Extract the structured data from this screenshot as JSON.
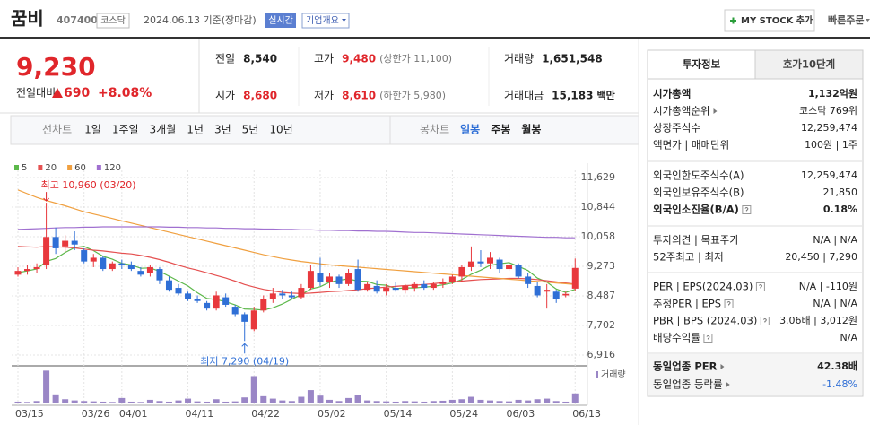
{
  "header": {
    "name": "꿈비",
    "code": "407400",
    "market": "코스닥",
    "date": "2024.06.13 기준(장마감)",
    "realtime": "실시간",
    "company_info": "기업개요",
    "my_stock": "MY STOCK 추가",
    "quick_order": "빠른주문"
  },
  "price": {
    "current": "9,230",
    "change_label": "전일대비",
    "change": "690",
    "change_pct": "+8.08%",
    "color": "#e0262b"
  },
  "quotes": [
    {
      "label": "전일",
      "value": "8,540"
    },
    {
      "label": "고가",
      "value": "9,480",
      "note": "(상한가 11,100)",
      "color": "#e0262b"
    },
    {
      "label": "거래량",
      "value": "1,651,548"
    },
    {
      "label": "시가",
      "value": "8,680",
      "color": "#e0262b"
    },
    {
      "label": "저가",
      "value": "8,610",
      "note": "(하한가 5,980)",
      "color": "#e0262b"
    },
    {
      "label": "거래대금",
      "value": "15,183",
      "note": "백만"
    }
  ],
  "period_tabs": {
    "line_label": "선차트",
    "line_items": [
      "1일",
      "1주일",
      "3개월",
      "1년",
      "3년",
      "5년",
      "10년"
    ],
    "candle_label": "봉차트",
    "candle_items": [
      "일봉",
      "주봉",
      "월봉"
    ],
    "active_candle": 0
  },
  "info": {
    "tabs": [
      "투자정보",
      "호가10단계"
    ],
    "groups": [
      [
        {
          "label": "시가총액",
          "value": "1,132억원",
          "bold": true
        },
        {
          "label": "시가총액순위",
          "value": "코스닥 769위",
          "link": true
        },
        {
          "label": "상장주식수",
          "value": "12,259,474"
        },
        {
          "label": "액면가 | 매매단위",
          "value": "100원 | 1주"
        }
      ],
      [
        {
          "label": "외국인한도주식수(A)",
          "value": "12,259,474"
        },
        {
          "label": "외국인보유주식수(B)",
          "value": "21,850"
        },
        {
          "label": "외국인소진율(B/A)",
          "value": "0.18%",
          "bold": true,
          "help": true
        }
      ],
      [
        {
          "label": "투자의견 | 목표주가",
          "value": "N/A | N/A"
        },
        {
          "label": "52주최고 | 최저",
          "value": "20,450 | 7,290"
        }
      ],
      [
        {
          "label": "PER | EPS(2024.03)",
          "value": "N/A | -110원",
          "help": true
        },
        {
          "label": "추정PER | EPS",
          "value": "N/A | N/A",
          "help": true
        },
        {
          "label": "PBR | BPS (2024.03)",
          "value": "3.06배 | 3,012원",
          "help": true
        },
        {
          "label": "배당수익률",
          "value": "N/A",
          "help": true
        }
      ]
    ],
    "industry": [
      {
        "label": "동일업종 PER",
        "value": "42.38배",
        "bold": true,
        "link": true
      },
      {
        "label": "동일업종 등락률",
        "value": "-1.48%",
        "link": true,
        "color": "#2f6fd6"
      }
    ]
  },
  "chart_data": {
    "type": "candlestick",
    "categories": [
      "03/15",
      null,
      null,
      null,
      null,
      null,
      null,
      "03/26",
      null,
      null,
      null,
      "04/01",
      null,
      null,
      null,
      null,
      null,
      null,
      "04/11",
      null,
      null,
      null,
      null,
      null,
      null,
      "04/22",
      null,
      null,
      null,
      null,
      null,
      null,
      "05/02",
      null,
      null,
      null,
      null,
      null,
      null,
      "05/14",
      null,
      null,
      null,
      null,
      null,
      null,
      "05/24",
      null,
      null,
      null,
      null,
      null,
      "06/03",
      null,
      null,
      null,
      null,
      null,
      null,
      "06/13"
    ],
    "open": [
      9050,
      9150,
      9200,
      9300,
      10050,
      9800,
      9950,
      9700,
      9400,
      9500,
      9200,
      9350,
      9300,
      9150,
      9100,
      9200,
      8900,
      8700,
      8550,
      8400,
      8300,
      8150,
      8450,
      8200,
      8000,
      7600,
      8100,
      8400,
      8550,
      8500,
      8450,
      8700,
      9100,
      8850,
      9000,
      8800,
      9200,
      8650,
      8750,
      8600,
      8700,
      8650,
      8700,
      8800,
      8700,
      8800,
      8850,
      9000,
      9250,
      9400,
      9350,
      9450,
      9200,
      9300,
      9000,
      8750,
      8600,
      8600,
      8500,
      8680
    ],
    "high": [
      9250,
      9300,
      9350,
      10960,
      10300,
      10100,
      10200,
      9750,
      9600,
      9550,
      9400,
      9450,
      9400,
      9250,
      9300,
      9250,
      9000,
      8800,
      8600,
      8500,
      8350,
      8600,
      8550,
      8250,
      8050,
      8200,
      8500,
      8700,
      8650,
      8600,
      8800,
      9300,
      9500,
      9100,
      9050,
      9200,
      9450,
      8850,
      8900,
      8800,
      8850,
      8800,
      8850,
      8900,
      8850,
      8950,
      9050,
      9300,
      9800,
      9700,
      9650,
      9500,
      9350,
      9350,
      9100,
      8850,
      8800,
      8650,
      8600,
      9480
    ],
    "low": [
      9000,
      9050,
      9100,
      9200,
      9600,
      9650,
      9700,
      9350,
      9250,
      9150,
      9150,
      9200,
      9150,
      9000,
      9000,
      8800,
      8600,
      8500,
      8350,
      8300,
      8100,
      8100,
      8200,
      7950,
      7290,
      7550,
      8050,
      8300,
      8400,
      8400,
      8400,
      8650,
      8750,
      8700,
      8700,
      8750,
      8600,
      8600,
      8550,
      8500,
      8600,
      8550,
      8600,
      8650,
      8650,
      8700,
      8800,
      8850,
      9150,
      9250,
      9200,
      9100,
      9150,
      8950,
      8700,
      8450,
      8150,
      8300,
      8450,
      8610
    ],
    "close": [
      9150,
      9200,
      9250,
      10050,
      9750,
      9950,
      9850,
      9400,
      9500,
      9200,
      9350,
      9300,
      9200,
      9050,
      9250,
      8900,
      8650,
      8550,
      8400,
      8350,
      8150,
      8500,
      8250,
      8000,
      7800,
      8100,
      8400,
      8550,
      8500,
      8450,
      8700,
      9150,
      8850,
      9000,
      8800,
      9100,
      8650,
      8800,
      8600,
      8700,
      8650,
      8750,
      8800,
      8700,
      8800,
      8850,
      9000,
      9250,
      9400,
      9350,
      9500,
      9200,
      9300,
      9000,
      8800,
      8500,
      8650,
      8400,
      8540,
      9230
    ],
    "up_color": "#e8383d",
    "down_color": "#2f6fd6",
    "moving_averages": [
      {
        "name": "5",
        "color": "#5cb84a",
        "values": [
          9100,
          9150,
          9200,
          9400,
          9480,
          9640,
          9770,
          9800,
          9690,
          9540,
          9460,
          9350,
          9310,
          9220,
          9230,
          9140,
          9010,
          8880,
          8750,
          8570,
          8420,
          8390,
          8330,
          8250,
          8140,
          8130,
          8110,
          8170,
          8270,
          8400,
          8520,
          8670,
          8730,
          8850,
          8900,
          8940,
          8880,
          8870,
          8790,
          8770,
          8680,
          8700,
          8700,
          8720,
          8740,
          8780,
          8830,
          8920,
          9060,
          9170,
          9300,
          9340,
          9370,
          9270,
          9160,
          8960,
          8850,
          8670,
          8580,
          8660
        ]
      },
      {
        "name": "20",
        "color": "#e55050",
        "values": [
          9800,
          9790,
          9780,
          9800,
          9790,
          9780,
          9760,
          9730,
          9700,
          9680,
          9650,
          9620,
          9600,
          9560,
          9510,
          9450,
          9380,
          9300,
          9230,
          9170,
          9100,
          9030,
          8960,
          8880,
          8790,
          8720,
          8660,
          8620,
          8580,
          8560,
          8550,
          8560,
          8580,
          8600,
          8610,
          8630,
          8650,
          8680,
          8700,
          8720,
          8740,
          8760,
          8770,
          8790,
          8810,
          8840,
          8860,
          8880,
          8900,
          8920,
          8930,
          8940,
          8950,
          8950,
          8940,
          8920,
          8890,
          8860,
          8830,
          8800
        ]
      },
      {
        "name": "60",
        "color": "#f0a040",
        "values": [
          11300,
          11200,
          11100,
          11020,
          10950,
          10880,
          10800,
          10720,
          10660,
          10600,
          10540,
          10480,
          10420,
          10360,
          10300,
          10240,
          10180,
          10120,
          10060,
          10000,
          9940,
          9880,
          9820,
          9760,
          9700,
          9640,
          9580,
          9530,
          9480,
          9440,
          9400,
          9370,
          9340,
          9310,
          9290,
          9270,
          9250,
          9230,
          9210,
          9190,
          9170,
          9150,
          9130,
          9110,
          9090,
          9070,
          9050,
          9030,
          9010,
          8990,
          8970,
          8950,
          8930,
          8910,
          8890,
          8870,
          8850,
          8830,
          8810,
          8790
        ]
      },
      {
        "name": "120",
        "color": "#a070d0",
        "values": [
          10250,
          10260,
          10270,
          10280,
          10290,
          10300,
          10300,
          10310,
          10310,
          10320,
          10320,
          10320,
          10320,
          10320,
          10320,
          10320,
          10310,
          10310,
          10300,
          10300,
          10290,
          10290,
          10280,
          10280,
          10270,
          10270,
          10260,
          10260,
          10250,
          10250,
          10240,
          10240,
          10230,
          10230,
          10220,
          10220,
          10210,
          10210,
          10200,
          10200,
          10190,
          10180,
          10170,
          10170,
          10160,
          10150,
          10140,
          10130,
          10120,
          10110,
          10100,
          10090,
          10080,
          10070,
          10060,
          10050,
          10040,
          10040,
          10030,
          10030
        ]
      }
    ],
    "volume": {
      "name": "거래량",
      "color": "#9a86c6",
      "ylim": [
        0,
        5600000
      ],
      "values": [
        300000,
        250000,
        400000,
        5400000,
        1500000,
        700000,
        500000,
        400000,
        350000,
        300000,
        250000,
        900000,
        300000,
        250000,
        600000,
        400000,
        300000,
        500000,
        800000,
        350000,
        300000,
        700000,
        300000,
        350000,
        1000000,
        4500000,
        1200000,
        800000,
        500000,
        400000,
        1100000,
        2200000,
        1300000,
        600000,
        400000,
        900000,
        1400000,
        500000,
        400000,
        350000,
        300000,
        400000,
        350000,
        300000,
        400000,
        450000,
        600000,
        700000,
        1100000,
        600000,
        500000,
        400000,
        350000,
        600000,
        500000,
        700000,
        800000,
        400000,
        300000,
        1651548
      ]
    },
    "ylim": [
      6702,
      11819
    ],
    "yticks": [
      {
        "value": 11629,
        "label": "11,629"
      },
      {
        "value": 10844,
        "label": "10,844"
      },
      {
        "value": 10058,
        "label": "10,058"
      },
      {
        "value": 9273,
        "label": "9,273"
      },
      {
        "value": 8487,
        "label": "8,487"
      },
      {
        "value": 7702,
        "label": "7,702"
      },
      {
        "value": 6916,
        "label": "6,916"
      }
    ],
    "grid": true,
    "annotations": [
      {
        "text": "최고 10,960 (03/20)",
        "value": 10960,
        "position": "above",
        "color": "#e0262b"
      },
      {
        "text": "최저 7,290 (04/19)",
        "value": 7290,
        "position": "below",
        "color": "#2f6fd6"
      }
    ]
  }
}
